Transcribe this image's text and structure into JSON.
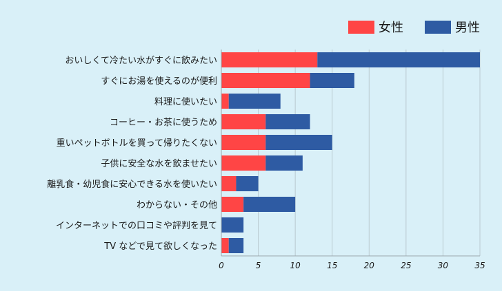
{
  "chart_data": {
    "type": "bar",
    "orientation": "horizontal",
    "stacked": true,
    "categories": [
      "おいしくて冷たい水がすぐに飲みたい",
      "すぐにお湯を使えるのが便利",
      "料理に使いたい",
      "コーヒー・お茶に使うため",
      "重いペットボトルを買って帰りたくない",
      "子供に安全な水を飲ませたい",
      "離乳食・幼児食に安心できる水を使いたい",
      "わからない・その他",
      "インターネットでの口コミや評判を見て",
      "TV などで見て欲しくなった"
    ],
    "series": [
      {
        "name": "女性",
        "color": "#ff4545",
        "values": [
          13,
          12,
          1,
          6,
          6,
          6,
          2,
          3,
          0,
          1
        ]
      },
      {
        "name": "男性",
        "color": "#2e5ba3",
        "values": [
          22,
          6,
          7,
          6,
          9,
          5,
          3,
          7,
          3,
          2
        ]
      }
    ],
    "xlim": [
      0,
      35
    ],
    "xticks": [
      0,
      5,
      10,
      15,
      20,
      25,
      30,
      35
    ],
    "xlabel": "",
    "ylabel": "",
    "grid": true,
    "legend": "top-right"
  }
}
